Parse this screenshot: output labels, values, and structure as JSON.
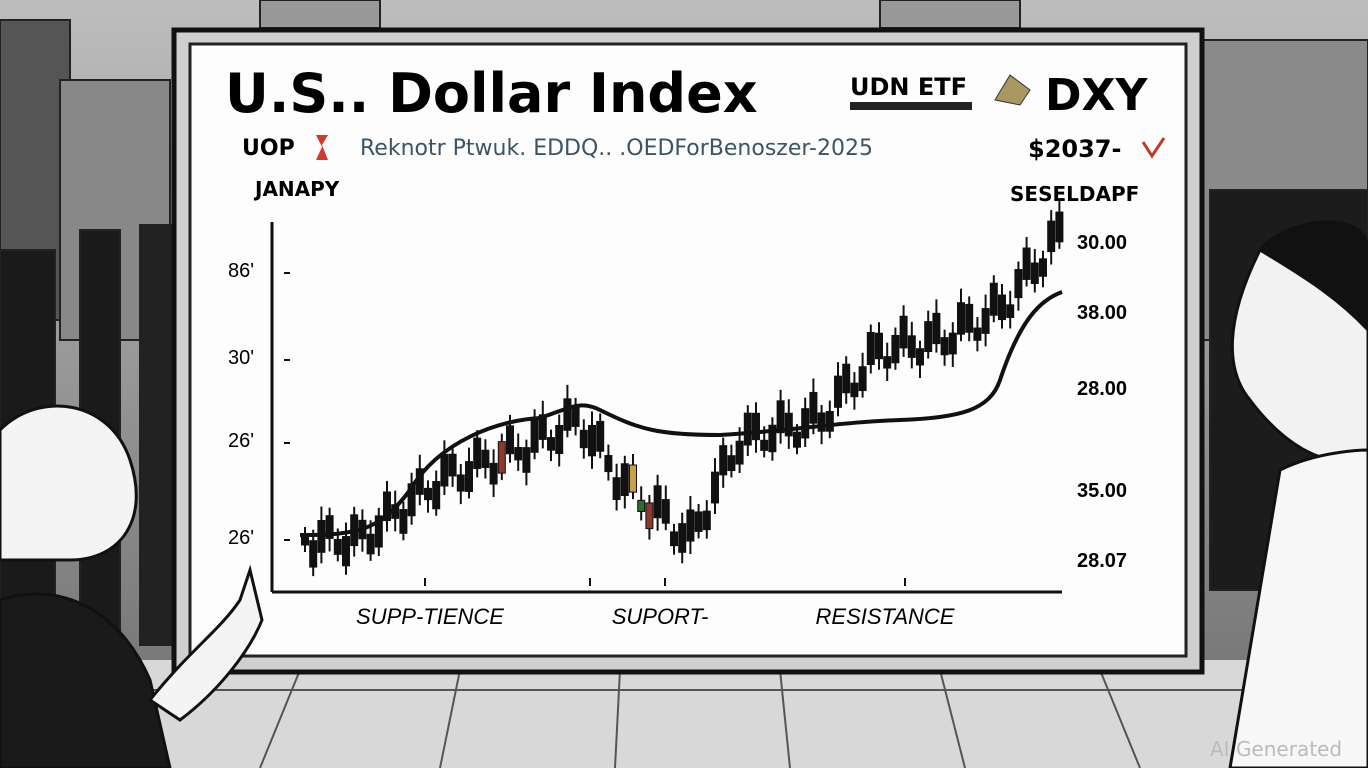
{
  "board": {
    "title": "U.S.. Dollar Index",
    "brand_left": "UDN ETF",
    "brand_right": "DXY",
    "sub_left": "UOP",
    "subtitle": "Reknotr Ptwuk. EDDQ.. .OEDForBenoszer-2025",
    "sub_right": "$2037-",
    "corner_left": "JANAPY",
    "corner_right": "SESELDAPF",
    "left_axis": [
      "86'",
      "30'",
      "26'",
      "26'"
    ],
    "right_axis": [
      "30.00",
      "38.00",
      "28.00",
      "35.00",
      "28.07"
    ],
    "bottom_labels": [
      "SUPP-TIENCE",
      "SUPORT-",
      "RESISTANCE"
    ]
  },
  "watermark": "AI Generated"
}
